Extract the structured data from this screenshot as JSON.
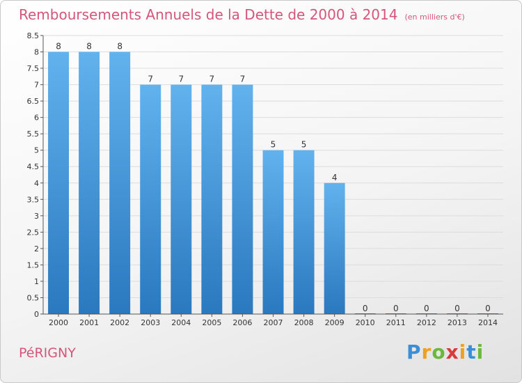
{
  "header": {
    "title": "Remboursements Annuels de la Dette de 2000 à 2014",
    "unit": "(en milliers d'€)"
  },
  "footer": {
    "commune": "PéRIGNY",
    "logo_letters": [
      "P",
      "r",
      "o",
      "x",
      "i",
      "t",
      "i"
    ],
    "logo_colors": [
      "#3a8fd6",
      "#f0a020",
      "#6cb83a",
      "#d93a3a",
      "#f0a020",
      "#3a8fd6",
      "#6cb83a"
    ]
  },
  "colors": {
    "bar_top": "#62b2ee",
    "bar_bottom": "#2a78be",
    "grid": "#dcdcdc",
    "axis": "#555555",
    "text": "#333333"
  },
  "chart_data": {
    "type": "bar",
    "categories": [
      "2000",
      "2001",
      "2002",
      "2003",
      "2004",
      "2005",
      "2006",
      "2007",
      "2008",
      "2009",
      "2010",
      "2011",
      "2012",
      "2013",
      "2014"
    ],
    "values": [
      8,
      8,
      8,
      7,
      7,
      7,
      7,
      5,
      5,
      4,
      0,
      0,
      0,
      0,
      0
    ],
    "data_labels": [
      "8",
      "8",
      "8",
      "7",
      "7",
      "7",
      "7",
      "5",
      "5",
      "4",
      "0",
      "0",
      "0",
      "0",
      "0"
    ],
    "yticks": [
      "0",
      "0.5",
      "1",
      "1.5",
      "2",
      "2.5",
      "3",
      "3.5",
      "4",
      "4.5",
      "5",
      "5.5",
      "6",
      "6.5",
      "7",
      "7.5",
      "8",
      "8.5"
    ],
    "ylim": [
      0,
      8.5
    ],
    "grid": true,
    "legend": "none"
  }
}
